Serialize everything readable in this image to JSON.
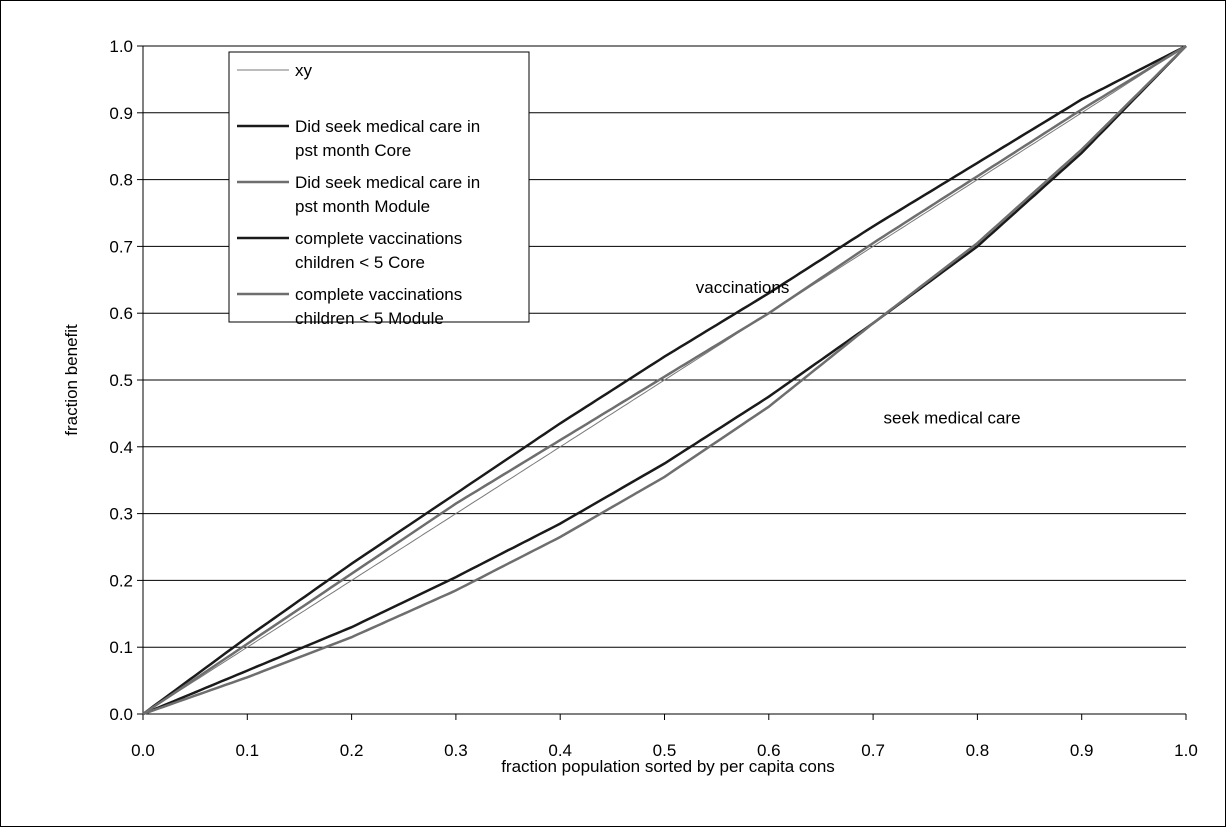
{
  "chart_data": {
    "type": "line",
    "title": "",
    "xlabel": "fraction population sorted by per capita cons",
    "ylabel": "fraction benefit",
    "xlim": [
      0.0,
      1.0
    ],
    "ylim": [
      0.0,
      1.0
    ],
    "x_ticks": [
      "0.0",
      "0.1",
      "0.2",
      "0.3",
      "0.4",
      "0.5",
      "0.6",
      "0.7",
      "0.8",
      "0.9",
      "1.0"
    ],
    "y_ticks": [
      "0.0",
      "0.1",
      "0.2",
      "0.3",
      "0.4",
      "0.5",
      "0.6",
      "0.7",
      "0.8",
      "0.9",
      "1.0"
    ],
    "grid": "horizontal",
    "legend_position": "top-left inside plot",
    "annotations": [
      {
        "text": "vaccinations",
        "x": 0.53,
        "y": 0.63
      },
      {
        "text": "seek medical care",
        "x": 0.71,
        "y": 0.435
      }
    ],
    "x": [
      0.0,
      0.1,
      0.2,
      0.3,
      0.4,
      0.5,
      0.6,
      0.7,
      0.8,
      0.9,
      1.0
    ],
    "series": [
      {
        "name": "xy",
        "color": "#7a7a7a",
        "width": 1,
        "values": [
          0.0,
          0.1,
          0.2,
          0.3,
          0.4,
          0.5,
          0.6,
          0.7,
          0.8,
          0.9,
          1.0
        ]
      },
      {
        "name": "Did seek medical care in pst month Core",
        "color": "#1a1a1a",
        "width": 2.5,
        "values": [
          0.0,
          0.065,
          0.13,
          0.205,
          0.285,
          0.375,
          0.475,
          0.585,
          0.7,
          0.84,
          1.0
        ]
      },
      {
        "name": "Did seek medical care in pst month Module",
        "color": "#6e6e6e",
        "width": 2.5,
        "values": [
          0.0,
          0.055,
          0.115,
          0.185,
          0.265,
          0.355,
          0.46,
          0.585,
          0.705,
          0.845,
          1.0
        ]
      },
      {
        "name": "complete  vaccinations children < 5 Core",
        "color": "#1a1a1a",
        "width": 2.5,
        "values": [
          0.0,
          0.115,
          0.225,
          0.33,
          0.435,
          0.535,
          0.63,
          0.73,
          0.825,
          0.92,
          1.0
        ]
      },
      {
        "name": "complete  vaccinations children < 5 Module",
        "color": "#6e6e6e",
        "width": 2.5,
        "values": [
          0.0,
          0.105,
          0.21,
          0.315,
          0.41,
          0.505,
          0.6,
          0.705,
          0.805,
          0.905,
          1.0
        ]
      }
    ],
    "legend_lines": [
      [
        "xy"
      ],
      [
        "Did seek medical care in",
        "pst month Core"
      ],
      [
        "Did seek medical care in",
        "pst month Module"
      ],
      [
        "complete  vaccinations",
        "children < 5 Core"
      ],
      [
        "complete  vaccinations",
        "children < 5 Module"
      ]
    ]
  }
}
